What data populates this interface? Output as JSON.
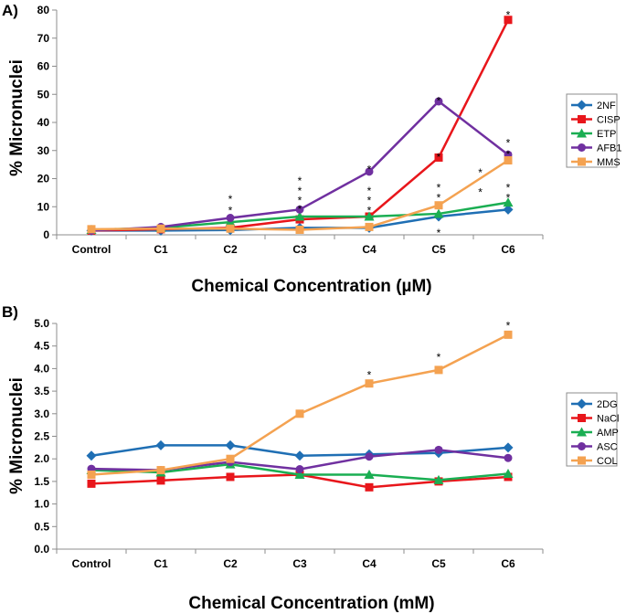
{
  "chart_data": [
    {
      "type": "line",
      "panel_label": "A)",
      "ylabel": "% Micronuclei",
      "xlabel": "Chemical Concentration (µM)",
      "categories": [
        "Control",
        "C1",
        "C2",
        "C3",
        "C4",
        "C5",
        "C6"
      ],
      "ylim": [
        0,
        80
      ],
      "yticks": [
        0,
        10,
        20,
        30,
        40,
        50,
        60,
        70,
        80
      ],
      "ytick_labels": [
        "0",
        "10",
        "20",
        "30",
        "40",
        "50",
        "60",
        "70",
        "80"
      ],
      "series": [
        {
          "name": "2NF",
          "color": "#1f6fb4",
          "marker": "diamond",
          "values": [
            1.5,
            1.5,
            1.7,
            2.5,
            2.5,
            6.5,
            9
          ]
        },
        {
          "name": "CISP",
          "color": "#e8161b",
          "marker": "square",
          "values": [
            1.5,
            2.0,
            2.5,
            5.5,
            6.5,
            27.5,
            76.5
          ]
        },
        {
          "name": "ETP",
          "color": "#1aae52",
          "marker": "triangle",
          "values": [
            1.8,
            2.5,
            4.5,
            6.5,
            6.5,
            7.5,
            11.5
          ]
        },
        {
          "name": "AFB1",
          "color": "#7030a0",
          "marker": "circle",
          "values": [
            1.5,
            2.8,
            6.0,
            9.0,
            22.5,
            47.5,
            28.5
          ]
        },
        {
          "name": "MMS",
          "color": "#f4a251",
          "marker": "square",
          "values": [
            2.0,
            2.2,
            2.2,
            1.8,
            2.8,
            10.5,
            26.5
          ]
        }
      ],
      "annotations": [
        {
          "category": "C2",
          "value": 13,
          "text": "*"
        },
        {
          "category": "C2",
          "value": 9,
          "text": "*"
        },
        {
          "category": "C3",
          "value": 19.5,
          "text": "*"
        },
        {
          "category": "C3",
          "value": 16,
          "text": "*"
        },
        {
          "category": "C3",
          "value": 12.5,
          "text": "*"
        },
        {
          "category": "C3",
          "value": 9.5,
          "text": "*"
        },
        {
          "category": "C4",
          "value": 23.5,
          "text": "*"
        },
        {
          "category": "C4",
          "value": 16,
          "text": "*"
        },
        {
          "category": "C4",
          "value": 12.5,
          "text": "*"
        },
        {
          "category": "C4",
          "value": 9,
          "text": "*"
        },
        {
          "category": "C5",
          "value": 48,
          "text": "*"
        },
        {
          "category": "C5",
          "value": 28,
          "text": "*"
        },
        {
          "category": "C5",
          "value": 17,
          "text": "*"
        },
        {
          "category": "C5",
          "value": 13.5,
          "text": "*"
        },
        {
          "category": "C5",
          "value": 1,
          "text": "*"
        },
        {
          "category": "C6",
          "value": 78.5,
          "text": "*"
        },
        {
          "category": "C6",
          "value": 33,
          "text": "*"
        },
        {
          "category": "C6",
          "value": 29,
          "text": "*"
        },
        {
          "category": "C6",
          "value": 17,
          "text": "*"
        },
        {
          "category": "C6",
          "value": 13.5,
          "text": "*"
        },
        {
          "category": "C5",
          "value": 22.5,
          "text": "*",
          "offset": 0.6
        },
        {
          "category": "C5",
          "value": 15.5,
          "text": "*",
          "offset": 0.6
        }
      ]
    },
    {
      "type": "line",
      "panel_label": "B)",
      "ylabel": "% Micronuclei",
      "xlabel": "Chemical Concentration (mM)",
      "categories": [
        "Control",
        "C1",
        "C2",
        "C3",
        "C4",
        "C5",
        "C6"
      ],
      "ylim": [
        0,
        5
      ],
      "yticks": [
        0,
        0.5,
        1,
        1.5,
        2,
        2.5,
        3,
        3.5,
        4,
        4.5,
        5
      ],
      "ytick_labels": [
        "0.0",
        "0.5",
        "1.0",
        "1.5",
        "2.0",
        "2.5",
        "3.0",
        "3.5",
        "4.0",
        "4.5",
        "5.0"
      ],
      "series": [
        {
          "name": "2DG",
          "color": "#1f6fb4",
          "marker": "diamond",
          "values": [
            2.07,
            2.3,
            2.3,
            2.07,
            2.1,
            2.13,
            2.25
          ]
        },
        {
          "name": "NaCl",
          "color": "#e8161b",
          "marker": "square",
          "values": [
            1.45,
            1.52,
            1.6,
            1.65,
            1.37,
            1.5,
            1.6
          ]
        },
        {
          "name": "AMP",
          "color": "#1aae52",
          "marker": "triangle",
          "values": [
            1.75,
            1.7,
            1.88,
            1.65,
            1.65,
            1.53,
            1.67
          ]
        },
        {
          "name": "ASC",
          "color": "#7030a0",
          "marker": "circle",
          "values": [
            1.78,
            1.75,
            1.93,
            1.77,
            2.05,
            2.2,
            2.02
          ]
        },
        {
          "name": "COL",
          "color": "#f4a251",
          "marker": "square",
          "values": [
            1.65,
            1.75,
            2.0,
            3.0,
            3.67,
            3.97,
            4.75
          ]
        }
      ],
      "annotations": [
        {
          "category": "C4",
          "value": 3.88,
          "text": "*"
        },
        {
          "category": "C5",
          "value": 4.27,
          "text": "*"
        },
        {
          "category": "C6",
          "value": 4.97,
          "text": "*"
        }
      ]
    }
  ]
}
